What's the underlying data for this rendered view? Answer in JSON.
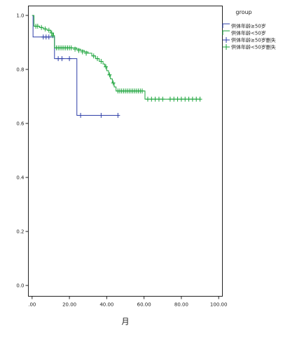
{
  "chart_data": {
    "type": "line",
    "title": "",
    "xlabel": "月",
    "ylabel": "",
    "xlim": [
      -2,
      102
    ],
    "ylim": [
      -0.04,
      1.035
    ],
    "x_ticks": [
      0,
      20,
      40,
      60,
      80,
      100
    ],
    "x_tick_labels": [
      ".00",
      "20.00",
      "40.00",
      "60.00",
      "80.00",
      "100.00"
    ],
    "y_ticks": [
      0,
      0.2,
      0.4,
      0.6,
      0.8,
      1.0
    ],
    "y_tick_labels": [
      "0.0",
      "0.2",
      "0.4",
      "0.6",
      "0.8",
      "1.0"
    ],
    "grid": false,
    "legend": {
      "title": "group",
      "placement": "right",
      "entries": [
        {
          "label": "供体年龄≥50岁",
          "color": "#2e3fa8",
          "kind": "step"
        },
        {
          "label": "供体年龄<50岁",
          "color": "#1aa33a",
          "kind": "step"
        },
        {
          "label": "供体年龄≥50岁删失",
          "color": "#2e3fa8",
          "kind": "censor"
        },
        {
          "label": "供体年龄<50岁删失",
          "color": "#1aa33a",
          "kind": "censor"
        }
      ]
    },
    "series": [
      {
        "color": "#2e3fa8",
        "steps": [
          [
            0,
            1.0
          ],
          [
            0.5,
            0.92
          ],
          [
            11.5,
            0.92
          ],
          [
            12,
            0.84
          ],
          [
            23.5,
            0.84
          ],
          [
            24,
            0.63
          ],
          [
            46,
            0.63
          ]
        ],
        "censored": [
          [
            6,
            0.92
          ],
          [
            7.5,
            0.92
          ],
          [
            9,
            0.92
          ],
          [
            14,
            0.84
          ],
          [
            16,
            0.84
          ],
          [
            20,
            0.84
          ],
          [
            26,
            0.63
          ],
          [
            37,
            0.63
          ],
          [
            46,
            0.63
          ]
        ]
      },
      {
        "color": "#1aa33a",
        "steps": [
          [
            0,
            1.0
          ],
          [
            1,
            0.96
          ],
          [
            4,
            0.955
          ],
          [
            6,
            0.95
          ],
          [
            8,
            0.945
          ],
          [
            10,
            0.935
          ],
          [
            11.5,
            0.925
          ],
          [
            12,
            0.88
          ],
          [
            22,
            0.88
          ],
          [
            24,
            0.875
          ],
          [
            26,
            0.87
          ],
          [
            28,
            0.865
          ],
          [
            30,
            0.86
          ],
          [
            32,
            0.85
          ],
          [
            34,
            0.84
          ],
          [
            36,
            0.83
          ],
          [
            38,
            0.82
          ],
          [
            39,
            0.81
          ],
          [
            40,
            0.795
          ],
          [
            41,
            0.78
          ],
          [
            42,
            0.765
          ],
          [
            43,
            0.75
          ],
          [
            44,
            0.735
          ],
          [
            45,
            0.72
          ],
          [
            60,
            0.72
          ],
          [
            60.5,
            0.69
          ],
          [
            90,
            0.69
          ]
        ],
        "censored": [
          [
            2,
            0.96
          ],
          [
            3,
            0.96
          ],
          [
            5,
            0.955
          ],
          [
            7,
            0.95
          ],
          [
            9,
            0.945
          ],
          [
            10.5,
            0.935
          ],
          [
            11,
            0.925
          ],
          [
            13,
            0.88
          ],
          [
            14,
            0.88
          ],
          [
            15,
            0.88
          ],
          [
            16,
            0.88
          ],
          [
            17,
            0.88
          ],
          [
            18,
            0.88
          ],
          [
            19,
            0.88
          ],
          [
            20,
            0.88
          ],
          [
            21,
            0.88
          ],
          [
            23,
            0.875
          ],
          [
            25,
            0.87
          ],
          [
            27,
            0.865
          ],
          [
            29,
            0.86
          ],
          [
            33,
            0.85
          ],
          [
            35,
            0.84
          ],
          [
            37,
            0.83
          ],
          [
            39.5,
            0.81
          ],
          [
            41.5,
            0.78
          ],
          [
            43.5,
            0.75
          ],
          [
            46,
            0.72
          ],
          [
            47,
            0.72
          ],
          [
            48,
            0.72
          ],
          [
            49,
            0.72
          ],
          [
            50,
            0.72
          ],
          [
            51,
            0.72
          ],
          [
            52,
            0.72
          ],
          [
            53,
            0.72
          ],
          [
            54,
            0.72
          ],
          [
            55,
            0.72
          ],
          [
            56,
            0.72
          ],
          [
            57,
            0.72
          ],
          [
            58,
            0.72
          ],
          [
            59,
            0.72
          ],
          [
            62,
            0.69
          ],
          [
            64,
            0.69
          ],
          [
            66,
            0.69
          ],
          [
            68,
            0.69
          ],
          [
            70,
            0.69
          ],
          [
            74,
            0.69
          ],
          [
            76,
            0.69
          ],
          [
            78,
            0.69
          ],
          [
            80,
            0.69
          ],
          [
            82,
            0.69
          ],
          [
            84,
            0.69
          ],
          [
            86,
            0.69
          ],
          [
            88,
            0.69
          ],
          [
            90,
            0.69
          ]
        ]
      }
    ]
  }
}
